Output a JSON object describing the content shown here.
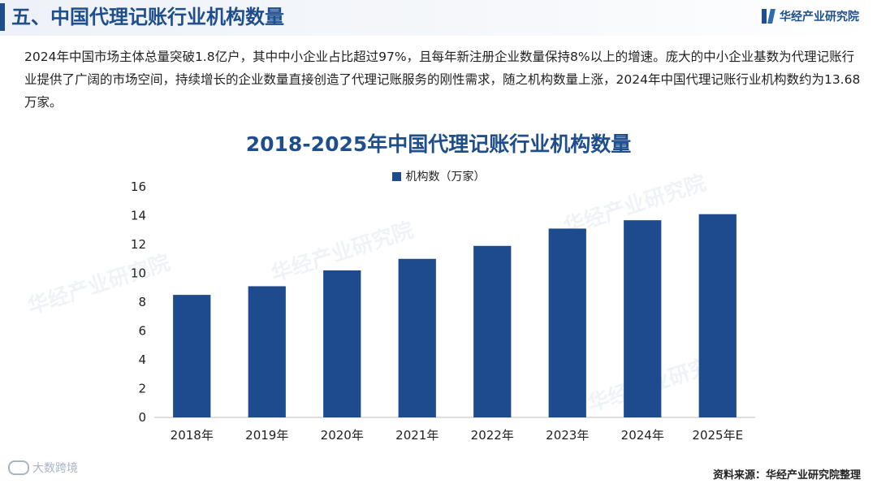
{
  "header": {
    "title": "五、中国代理记账行业机构数量",
    "brand_name": "华经产业研究院"
  },
  "intro_text": "2024年中国市场主体总量突破1.8亿户，其中中小企业占比超过97%，且每年新注册企业数量保持8%以上的增速。庞大的中小企业基数为代理记账行业提供了广阔的市场空间，持续增长的企业数量直接创造了代理记账服务的刚性需求，随之机构数量上涨，2024年中国代理记账行业机构数约为13.68万家。",
  "watermark_text": "华经产业研究院",
  "corner_mark": "大数跨境",
  "source": "资料来源：华经产业研究院整理",
  "colors": {
    "accent": "#1f4e8c",
    "bar": "#1e4a8e"
  },
  "chart_data": {
    "type": "bar",
    "title": "2018-2025年中国代理记账行业机构数量",
    "categories": [
      "2018年",
      "2019年",
      "2020年",
      "2021年",
      "2022年",
      "2023年",
      "2024年",
      "2025年E"
    ],
    "series": [
      {
        "name": "机构数（万家）",
        "values": [
          8.5,
          9.1,
          10.2,
          11.0,
          11.9,
          13.1,
          13.68,
          14.1
        ]
      }
    ],
    "ylim": [
      0,
      16
    ],
    "yticks": [
      "0",
      "2",
      "4",
      "6",
      "8",
      "10",
      "12",
      "14",
      "16"
    ],
    "grid": false,
    "legend_position": "top-center"
  }
}
